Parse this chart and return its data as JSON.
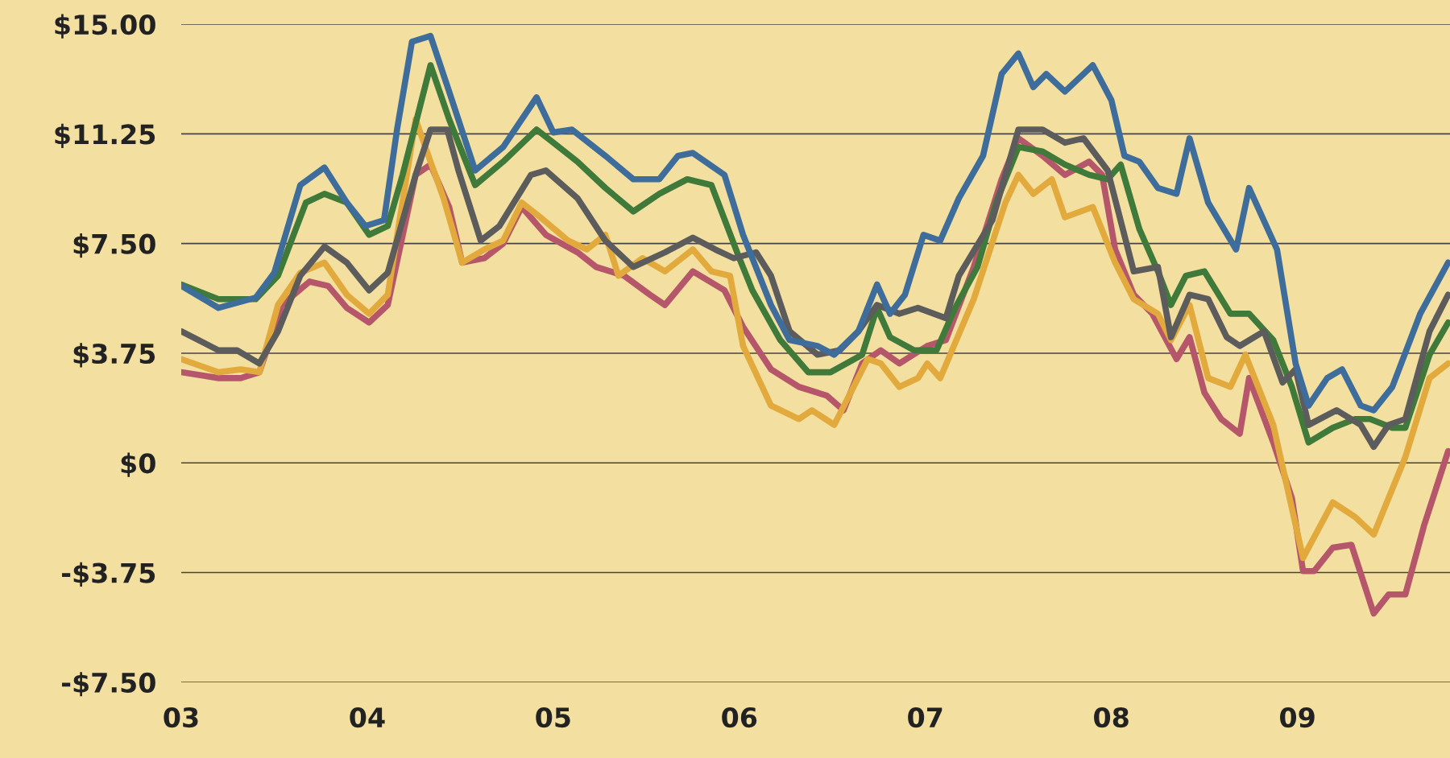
{
  "chart_data": {
    "type": "line",
    "grid": "y",
    "marker": "none",
    "line_style": "solid",
    "legend": false,
    "xlim": [
      3,
      9.82
    ],
    "xticks": [
      {
        "value": 3,
        "label": "03"
      },
      {
        "value": 4,
        "label": "04"
      },
      {
        "value": 5,
        "label": "05"
      },
      {
        "value": 6,
        "label": "06"
      },
      {
        "value": 7,
        "label": "07"
      },
      {
        "value": 8,
        "label": "08"
      },
      {
        "value": 9,
        "label": "09"
      }
    ],
    "ylim": [
      -7.5,
      15
    ],
    "yticks": [
      {
        "value": -7.5,
        "label": "-$7.50"
      },
      {
        "value": -3.75,
        "label": "-$3.75"
      },
      {
        "value": 0,
        "label": "$0"
      },
      {
        "value": 3.75,
        "label": "$3.75"
      },
      {
        "value": 7.5,
        "label": "$7.50"
      },
      {
        "value": 11.25,
        "label": "$11.25"
      },
      {
        "value": 15,
        "label": "$15.00"
      }
    ],
    "series": [
      {
        "color": "#b5566a",
        "x": [
          3,
          3.2,
          3.32,
          3.42,
          3.54,
          3.69,
          3.79,
          3.89,
          4.01,
          4.11,
          4.26,
          4.34,
          4.44,
          4.51,
          4.63,
          4.73,
          4.83,
          4.96,
          5.13,
          5.23,
          5.38,
          5.52,
          5.6,
          5.75,
          5.92,
          6.02,
          6.17,
          6.32,
          6.47,
          6.56,
          6.66,
          6.76,
          6.86,
          7.01,
          7.11,
          7.26,
          7.41,
          7.5,
          7.63,
          7.75,
          7.88,
          7.95,
          8.02,
          8.12,
          8.22,
          8.35,
          8.42,
          8.5,
          8.59,
          8.69,
          8.74,
          8.87,
          8.97,
          9.03,
          9.09,
          9.19,
          9.29,
          9.41,
          9.49,
          9.58,
          9.68,
          9.81
        ],
        "values": [
          3.1,
          2.9,
          2.9,
          3.1,
          5.4,
          6.2,
          6.05,
          5.3,
          4.8,
          5.4,
          9.85,
          10.2,
          8.75,
          6.85,
          7.0,
          7.5,
          8.75,
          7.8,
          7.2,
          6.7,
          6.4,
          5.75,
          5.4,
          6.55,
          5.9,
          4.65,
          3.2,
          2.6,
          2.3,
          1.8,
          3.4,
          3.85,
          3.4,
          4.0,
          4.2,
          6.7,
          9.7,
          11.1,
          10.5,
          9.85,
          10.3,
          9.85,
          7.3,
          5.75,
          5.1,
          3.55,
          4.3,
          2.4,
          1.5,
          1.0,
          2.9,
          0.7,
          -1.2,
          -3.7,
          -3.7,
          -2.9,
          -2.8,
          -5.15,
          -4.5,
          -4.5,
          -2.15,
          0.4
        ]
      },
      {
        "color": "#e2aa3c",
        "x": [
          3,
          3.2,
          3.32,
          3.42,
          3.52,
          3.64,
          3.77,
          3.89,
          4.01,
          4.11,
          4.26,
          4.34,
          4.41,
          4.51,
          4.63,
          4.73,
          4.83,
          4.93,
          5.08,
          5.18,
          5.28,
          5.35,
          5.48,
          5.6,
          5.75,
          5.85,
          5.95,
          6.02,
          6.17,
          6.32,
          6.39,
          6.51,
          6.69,
          6.76,
          6.86,
          6.96,
          7.01,
          7.08,
          7.26,
          7.43,
          7.5,
          7.58,
          7.68,
          7.75,
          7.9,
          8.02,
          8.12,
          8.25,
          8.32,
          8.42,
          8.52,
          8.64,
          8.72,
          8.87,
          8.94,
          9.03,
          9.19,
          9.31,
          9.41,
          9.58,
          9.71,
          9.81
        ],
        "values": [
          3.55,
          3.1,
          3.2,
          3.1,
          5.4,
          6.5,
          6.85,
          5.75,
          5.1,
          5.75,
          11.75,
          10.3,
          9.05,
          6.85,
          7.3,
          7.6,
          8.9,
          8.4,
          7.6,
          7.3,
          7.8,
          6.4,
          7.0,
          6.55,
          7.3,
          6.55,
          6.4,
          4.0,
          1.96,
          1.5,
          1.8,
          1.3,
          3.55,
          3.4,
          2.6,
          2.9,
          3.4,
          2.9,
          5.6,
          8.9,
          9.85,
          9.2,
          9.7,
          8.4,
          8.75,
          6.85,
          5.6,
          5.1,
          4.2,
          5.4,
          2.9,
          2.6,
          3.7,
          1.3,
          -0.7,
          -3.25,
          -1.35,
          -1.85,
          -2.45,
          0.2,
          2.9,
          3.4
        ]
      },
      {
        "color": "#3f7a3a",
        "x": [
          3,
          3.2,
          3.4,
          3.52,
          3.67,
          3.77,
          3.89,
          4.01,
          4.11,
          4.19,
          4.34,
          4.44,
          4.58,
          4.73,
          4.91,
          5.0,
          5.13,
          5.28,
          5.43,
          5.57,
          5.72,
          5.85,
          6.0,
          6.07,
          6.22,
          6.37,
          6.49,
          6.66,
          6.74,
          6.81,
          6.94,
          7.06,
          7.16,
          7.28,
          7.38,
          7.5,
          7.63,
          7.75,
          7.88,
          7.98,
          8.05,
          8.15,
          8.25,
          8.32,
          8.4,
          8.5,
          8.64,
          8.74,
          8.87,
          8.97,
          9.06,
          9.19,
          9.31,
          9.39,
          9.51,
          9.58,
          9.71,
          9.81
        ],
        "values": [
          6.1,
          5.6,
          5.6,
          6.4,
          8.9,
          9.2,
          8.9,
          7.8,
          8.1,
          9.85,
          13.6,
          11.75,
          9.5,
          10.3,
          11.4,
          10.95,
          10.3,
          9.4,
          8.6,
          9.2,
          9.7,
          9.5,
          7.0,
          5.9,
          4.2,
          3.1,
          3.1,
          3.7,
          5.3,
          4.3,
          3.85,
          3.85,
          5.3,
          6.7,
          8.9,
          10.8,
          10.65,
          10.2,
          9.85,
          9.7,
          10.2,
          8.0,
          6.55,
          5.4,
          6.4,
          6.55,
          5.1,
          5.1,
          4.2,
          2.6,
          0.7,
          1.2,
          1.5,
          1.5,
          1.2,
          1.2,
          3.7,
          4.8
        ]
      },
      {
        "color": "#5c5c5c",
        "x": [
          3,
          3.2,
          3.3,
          3.42,
          3.52,
          3.64,
          3.77,
          3.89,
          4.01,
          4.11,
          4.26,
          4.34,
          4.43,
          4.49,
          4.61,
          4.71,
          4.88,
          4.96,
          5.13,
          5.28,
          5.43,
          5.6,
          5.75,
          5.87,
          5.97,
          6.09,
          6.17,
          6.27,
          6.42,
          6.54,
          6.64,
          6.74,
          6.86,
          6.96,
          7.11,
          7.18,
          7.36,
          7.5,
          7.63,
          7.75,
          7.85,
          7.98,
          8.12,
          8.25,
          8.32,
          8.42,
          8.52,
          8.62,
          8.69,
          8.82,
          8.92,
          8.99,
          9.06,
          9.21,
          9.34,
          9.41,
          9.49,
          9.58,
          9.71,
          9.81
        ],
        "values": [
          4.5,
          3.85,
          3.85,
          3.4,
          4.5,
          6.4,
          7.4,
          6.85,
          5.9,
          6.5,
          9.85,
          11.4,
          11.4,
          10.0,
          7.6,
          8.1,
          9.85,
          10.0,
          9.05,
          7.6,
          6.7,
          7.2,
          7.7,
          7.3,
          7.0,
          7.2,
          6.4,
          4.5,
          3.7,
          3.85,
          4.5,
          5.4,
          5.1,
          5.3,
          4.95,
          6.4,
          8.3,
          11.4,
          11.4,
          10.95,
          11.1,
          10.0,
          6.55,
          6.7,
          4.3,
          5.75,
          5.6,
          4.3,
          4.0,
          4.5,
          2.75,
          3.2,
          1.3,
          1.8,
          1.3,
          0.55,
          1.3,
          1.5,
          4.5,
          5.75
        ]
      },
      {
        "color": "#3e6d9c",
        "x": [
          3,
          3.2,
          3.4,
          3.5,
          3.64,
          3.77,
          3.89,
          3.99,
          4.09,
          4.16,
          4.24,
          4.34,
          4.44,
          4.58,
          4.73,
          4.91,
          5.0,
          5.1,
          5.28,
          5.43,
          5.57,
          5.67,
          5.75,
          5.92,
          6.02,
          6.17,
          6.27,
          6.42,
          6.51,
          6.64,
          6.74,
          6.81,
          6.89,
          6.99,
          7.08,
          7.18,
          7.31,
          7.41,
          7.5,
          7.58,
          7.65,
          7.75,
          7.9,
          8.0,
          8.07,
          8.15,
          8.25,
          8.35,
          8.42,
          8.52,
          8.67,
          8.74,
          8.89,
          8.99,
          9.06,
          9.16,
          9.24,
          9.34,
          9.41,
          9.51,
          9.66,
          9.81
        ],
        "values": [
          6.06,
          5.3,
          5.65,
          6.5,
          9.5,
          10.1,
          8.9,
          8.1,
          8.3,
          11.4,
          14.4,
          14.6,
          12.7,
          10.0,
          10.8,
          12.5,
          11.3,
          11.4,
          10.5,
          9.7,
          9.7,
          10.5,
          10.6,
          9.85,
          7.8,
          5.4,
          4.2,
          4.0,
          3.7,
          4.5,
          6.1,
          5.1,
          5.75,
          7.8,
          7.6,
          9.05,
          10.5,
          13.3,
          14.0,
          12.85,
          13.3,
          12.7,
          13.6,
          12.4,
          10.5,
          10.3,
          9.4,
          9.2,
          11.1,
          8.9,
          7.3,
          9.4,
          7.3,
          3.4,
          1.96,
          2.9,
          3.2,
          1.96,
          1.8,
          2.6,
          5.1,
          6.85
        ]
      }
    ]
  }
}
